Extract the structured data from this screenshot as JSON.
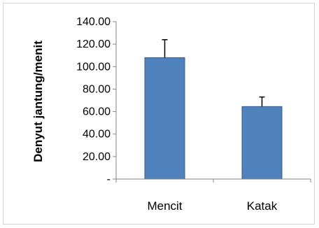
{
  "chart_data": {
    "type": "bar",
    "title": "",
    "xlabel": "",
    "ylabel": "Denyut jantung/menit",
    "categories": [
      "Mencit",
      "Katak"
    ],
    "values": [
      108.0,
      64.5
    ],
    "error_plus": [
      16.0,
      8.5
    ],
    "ylim": [
      0,
      140
    ],
    "y_ticks": [
      0,
      20,
      40,
      60,
      80,
      100,
      120,
      140
    ],
    "y_tick_labels": [
      "-",
      "20.00",
      "40.00",
      "60.00",
      "80.00",
      "100.00",
      "120.00",
      "140.00"
    ],
    "grid": false,
    "legend": "none",
    "bar_color": "#4f81bd",
    "bar_stroke": "#385d8a"
  }
}
